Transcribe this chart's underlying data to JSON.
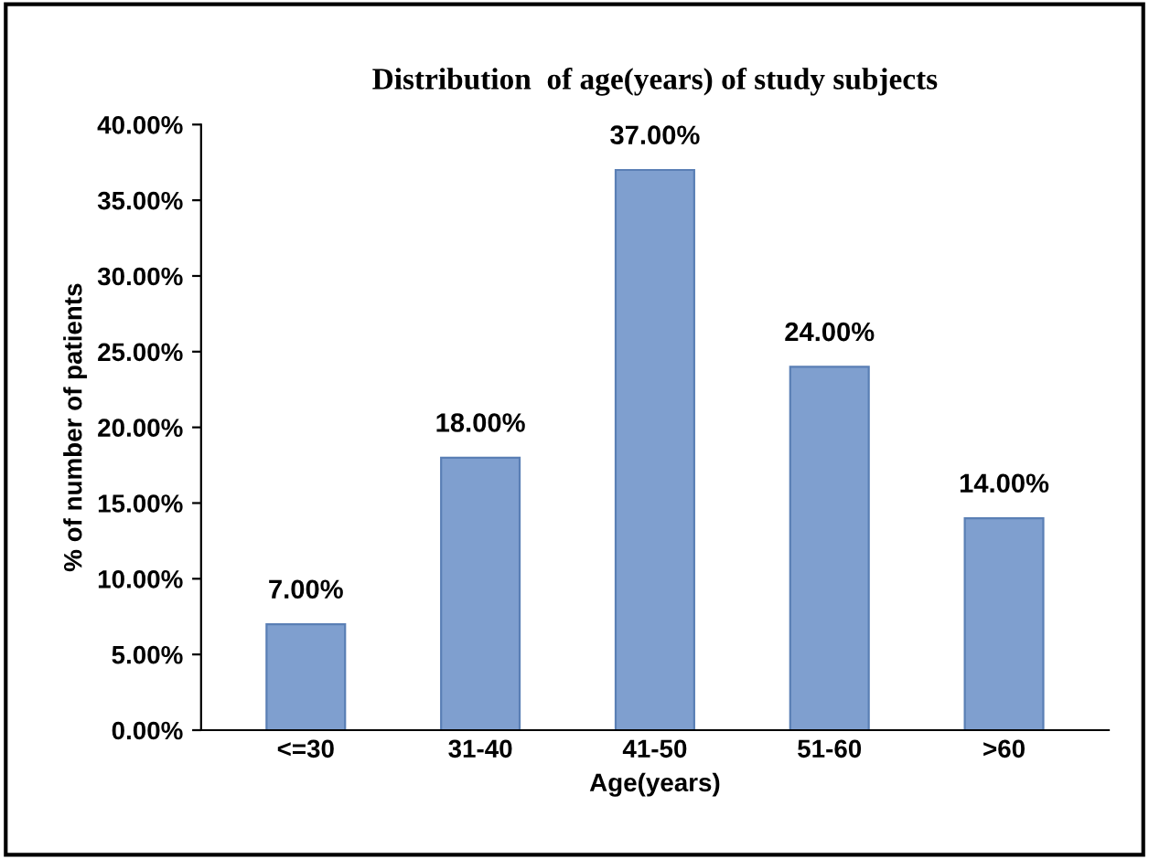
{
  "chart_data": {
    "type": "bar",
    "title": "Distribution  of age(years) of study subjects",
    "xlabel": "Age(years)",
    "ylabel": "% of number of patients",
    "categories": [
      "<=30",
      "31-40",
      "41-50",
      "51-60",
      ">60"
    ],
    "values": [
      7,
      18,
      37,
      24,
      14
    ],
    "value_labels": [
      "7.00%",
      "18.00%",
      "37.00%",
      "24.00%",
      "14.00%"
    ],
    "color": "#7f9fcf",
    "ylim": [
      0,
      40
    ],
    "yticks": [
      {
        "value": 0,
        "label": "0.00%"
      },
      {
        "value": 5,
        "label": "5.00%"
      },
      {
        "value": 10,
        "label": "10.00%"
      },
      {
        "value": 15,
        "label": "15.00%"
      },
      {
        "value": 20,
        "label": "20.00%"
      },
      {
        "value": 25,
        "label": "25.00%"
      },
      {
        "value": 30,
        "label": "30.00%"
      },
      {
        "value": 35,
        "label": "35.00%"
      },
      {
        "value": 40,
        "label": "40.00%"
      }
    ],
    "grid": false
  }
}
